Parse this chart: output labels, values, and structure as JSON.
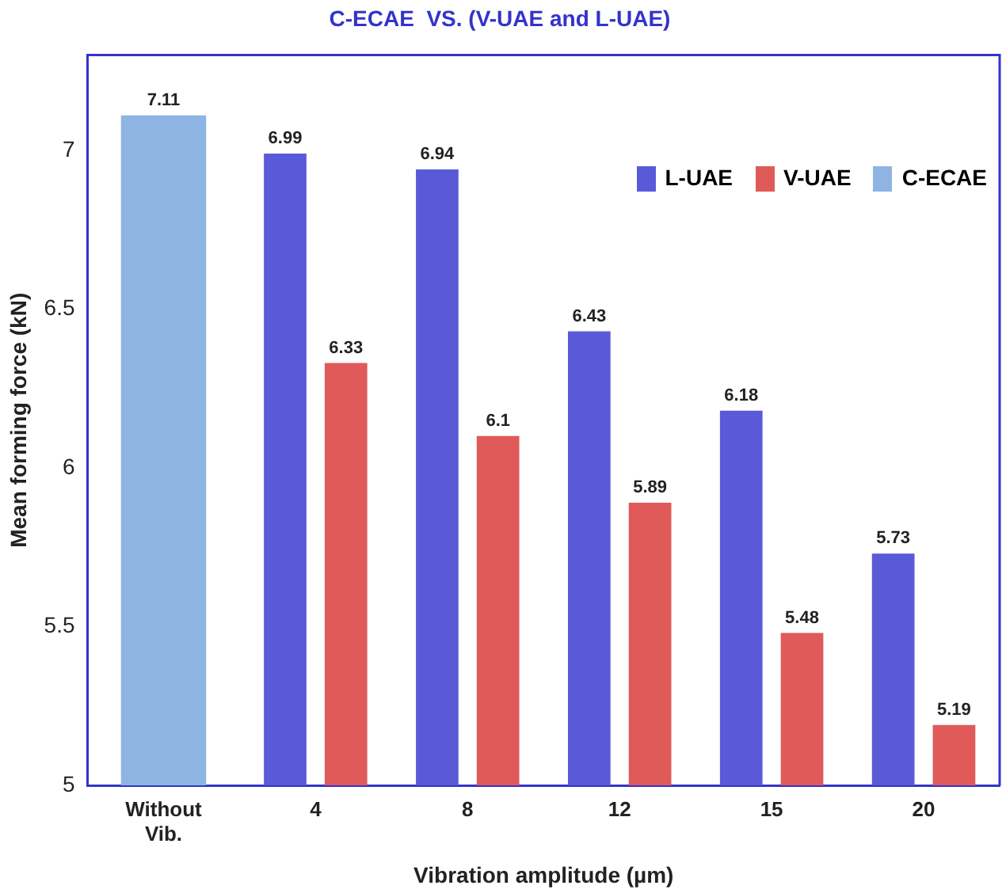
{
  "chart_data": {
    "type": "bar",
    "title": "C-ECAE  VS. (V-UAE and L-UAE)",
    "xlabel": "Vibration amplitude (µm)",
    "ylabel": "Mean forming force (kN)",
    "categories": [
      "Without Vib.",
      "4",
      "8",
      "12",
      "15",
      "20"
    ],
    "series": [
      {
        "name": "L-UAE",
        "color": "#5a5ad8",
        "values": [
          null,
          6.99,
          6.94,
          6.43,
          6.18,
          5.73
        ]
      },
      {
        "name": "V-UAE",
        "color": "#e05a5a",
        "values": [
          null,
          6.33,
          6.1,
          5.89,
          5.48,
          5.19
        ]
      },
      {
        "name": "C-ECAE",
        "color": "#8db4e2",
        "values": [
          7.11,
          null,
          null,
          null,
          null,
          null
        ]
      }
    ],
    "ylim": [
      5,
      7.3
    ],
    "yticks": [
      5,
      5.5,
      6,
      6.5,
      7
    ],
    "grid": false,
    "legend": "top right",
    "data_labels": true
  }
}
